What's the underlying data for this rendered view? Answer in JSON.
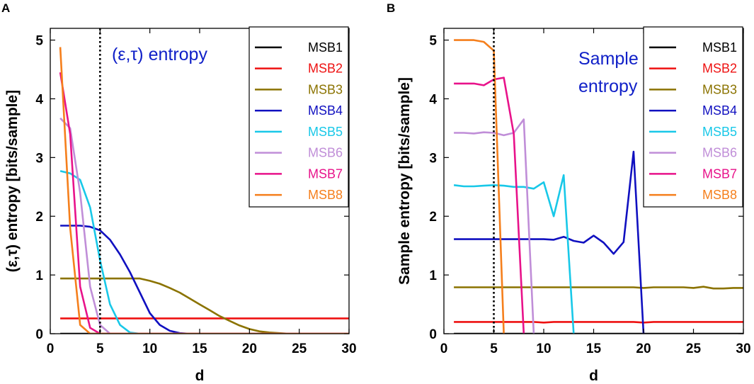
{
  "chart_data": [
    {
      "type": "line",
      "panel": "A",
      "title": "(ε,τ) entropy",
      "xlabel": "d",
      "ylabel": "(ε,τ) entropy [bits/sample]",
      "xlim": [
        0,
        30
      ],
      "ylim": [
        0,
        5.2
      ],
      "xticks": [
        0,
        5,
        10,
        15,
        20,
        25,
        30
      ],
      "yticks": [
        0,
        1,
        2,
        3,
        4,
        5
      ],
      "vline": 5,
      "legend_position": "top-right",
      "series": [
        {
          "name": "MSB1",
          "color": "#000000",
          "x": [
            1,
            30
          ],
          "y": [
            0.0,
            0.0
          ]
        },
        {
          "name": "MSB2",
          "color": "#ee1111",
          "x": [
            1,
            30
          ],
          "y": [
            0.26,
            0.26
          ]
        },
        {
          "name": "MSB3",
          "color": "#8b7300",
          "x": [
            1,
            2,
            3,
            4,
            5,
            6,
            7,
            8,
            9,
            10,
            11,
            12,
            13,
            14,
            15,
            16,
            17,
            18,
            19,
            20,
            21,
            22,
            23,
            24,
            25,
            26,
            30
          ],
          "y": [
            0.94,
            0.94,
            0.94,
            0.94,
            0.94,
            0.94,
            0.94,
            0.94,
            0.94,
            0.9,
            0.85,
            0.78,
            0.7,
            0.6,
            0.5,
            0.4,
            0.3,
            0.22,
            0.14,
            0.08,
            0.04,
            0.02,
            0.01,
            0.0,
            0.0,
            0.0,
            0.0
          ]
        },
        {
          "name": "MSB4",
          "color": "#1010c0",
          "x": [
            1,
            2,
            3,
            4,
            5,
            6,
            7,
            8,
            9,
            10,
            11,
            12,
            13,
            14,
            30
          ],
          "y": [
            1.84,
            1.84,
            1.84,
            1.82,
            1.76,
            1.6,
            1.35,
            1.05,
            0.7,
            0.35,
            0.15,
            0.05,
            0.01,
            0.0,
            0.0
          ]
        },
        {
          "name": "MSB5",
          "color": "#18c8e8",
          "x": [
            1,
            2,
            3,
            4,
            5,
            6,
            7,
            8,
            9,
            30
          ],
          "y": [
            2.77,
            2.73,
            2.62,
            2.15,
            1.25,
            0.5,
            0.15,
            0.02,
            0.0,
            0.0
          ]
        },
        {
          "name": "MSB6",
          "color": "#c08ed8",
          "x": [
            1,
            2,
            3,
            4,
            5,
            6,
            30
          ],
          "y": [
            3.67,
            3.5,
            2.4,
            0.8,
            0.15,
            0.0,
            0.0
          ]
        },
        {
          "name": "MSB7",
          "color": "#e8128a",
          "x": [
            1,
            2,
            3,
            4,
            5,
            30
          ],
          "y": [
            4.45,
            3.4,
            0.8,
            0.1,
            0.0,
            0.0
          ]
        },
        {
          "name": "MSB8",
          "color": "#f57f1c",
          "x": [
            1,
            2,
            3,
            4,
            30
          ],
          "y": [
            4.88,
            1.8,
            0.15,
            0.0,
            0.0
          ]
        }
      ]
    },
    {
      "type": "line",
      "panel": "B",
      "title": "Sample entropy",
      "title_lines": [
        "Sample",
        "entropy"
      ],
      "xlabel": "d",
      "ylabel": "Sample entropy [bits/sample]",
      "xlim": [
        0,
        30
      ],
      "ylim": [
        0,
        5.2
      ],
      "xticks": [
        0,
        5,
        10,
        15,
        20,
        25,
        30
      ],
      "yticks": [
        0,
        1,
        2,
        3,
        4,
        5
      ],
      "vline": 5,
      "legend_position": "top-right",
      "series": [
        {
          "name": "MSB1",
          "color": "#000000",
          "x": [
            1,
            30
          ],
          "y": [
            0.0,
            0.0
          ]
        },
        {
          "name": "MSB2",
          "color": "#ee1111",
          "x": [
            1,
            2,
            3,
            4,
            5,
            6,
            7,
            8,
            9,
            10,
            11,
            12,
            13,
            14,
            15,
            16,
            17,
            18,
            19,
            20,
            21,
            22,
            23,
            24,
            25,
            26,
            27,
            28,
            29,
            30
          ],
          "y": [
            0.2,
            0.2,
            0.2,
            0.2,
            0.2,
            0.2,
            0.2,
            0.2,
            0.2,
            0.19,
            0.2,
            0.2,
            0.2,
            0.2,
            0.2,
            0.2,
            0.2,
            0.2,
            0.2,
            0.19,
            0.2,
            0.2,
            0.2,
            0.2,
            0.2,
            0.2,
            0.2,
            0.2,
            0.2,
            0.2
          ]
        },
        {
          "name": "MSB3",
          "color": "#8b7300",
          "x": [
            1,
            2,
            3,
            4,
            5,
            6,
            7,
            8,
            9,
            10,
            11,
            12,
            13,
            14,
            15,
            16,
            17,
            18,
            19,
            20,
            21,
            22,
            23,
            24,
            25,
            26,
            27,
            28,
            29,
            30
          ],
          "y": [
            0.79,
            0.79,
            0.79,
            0.79,
            0.79,
            0.79,
            0.79,
            0.79,
            0.79,
            0.79,
            0.79,
            0.79,
            0.79,
            0.79,
            0.79,
            0.79,
            0.79,
            0.79,
            0.79,
            0.78,
            0.79,
            0.79,
            0.79,
            0.79,
            0.78,
            0.8,
            0.77,
            0.77,
            0.78,
            0.78
          ]
        },
        {
          "name": "MSB4",
          "color": "#1010c0",
          "x": [
            1,
            2,
            3,
            4,
            5,
            6,
            7,
            8,
            9,
            10,
            11,
            12,
            13,
            14,
            15,
            16,
            17,
            18,
            19,
            20
          ],
          "y": [
            1.61,
            1.61,
            1.61,
            1.61,
            1.61,
            1.61,
            1.61,
            1.61,
            1.61,
            1.61,
            1.6,
            1.65,
            1.58,
            1.55,
            1.67,
            1.55,
            1.36,
            1.56,
            3.1,
            0.0
          ]
        },
        {
          "name": "MSB5",
          "color": "#18c8e8",
          "x": [
            1,
            2,
            3,
            4,
            5,
            6,
            7,
            8,
            9,
            10,
            11,
            12,
            13
          ],
          "y": [
            2.53,
            2.51,
            2.51,
            2.52,
            2.53,
            2.52,
            2.5,
            2.5,
            2.47,
            2.58,
            2.0,
            2.7,
            0.0
          ]
        },
        {
          "name": "MSB6",
          "color": "#c08ed8",
          "x": [
            1,
            2,
            3,
            4,
            5,
            6,
            7,
            8,
            9
          ],
          "y": [
            3.42,
            3.42,
            3.41,
            3.43,
            3.42,
            3.38,
            3.42,
            3.65,
            0.0
          ]
        },
        {
          "name": "MSB7",
          "color": "#e8128a",
          "x": [
            1,
            2,
            3,
            4,
            5,
            6,
            7,
            8
          ],
          "y": [
            4.26,
            4.26,
            4.26,
            4.23,
            4.33,
            4.36,
            3.4,
            0.0
          ]
        },
        {
          "name": "MSB8",
          "color": "#f57f1c",
          "x": [
            1,
            2,
            3,
            4,
            5,
            6
          ],
          "y": [
            5.0,
            5.0,
            5.0,
            4.97,
            4.82,
            0.0
          ]
        }
      ]
    }
  ]
}
